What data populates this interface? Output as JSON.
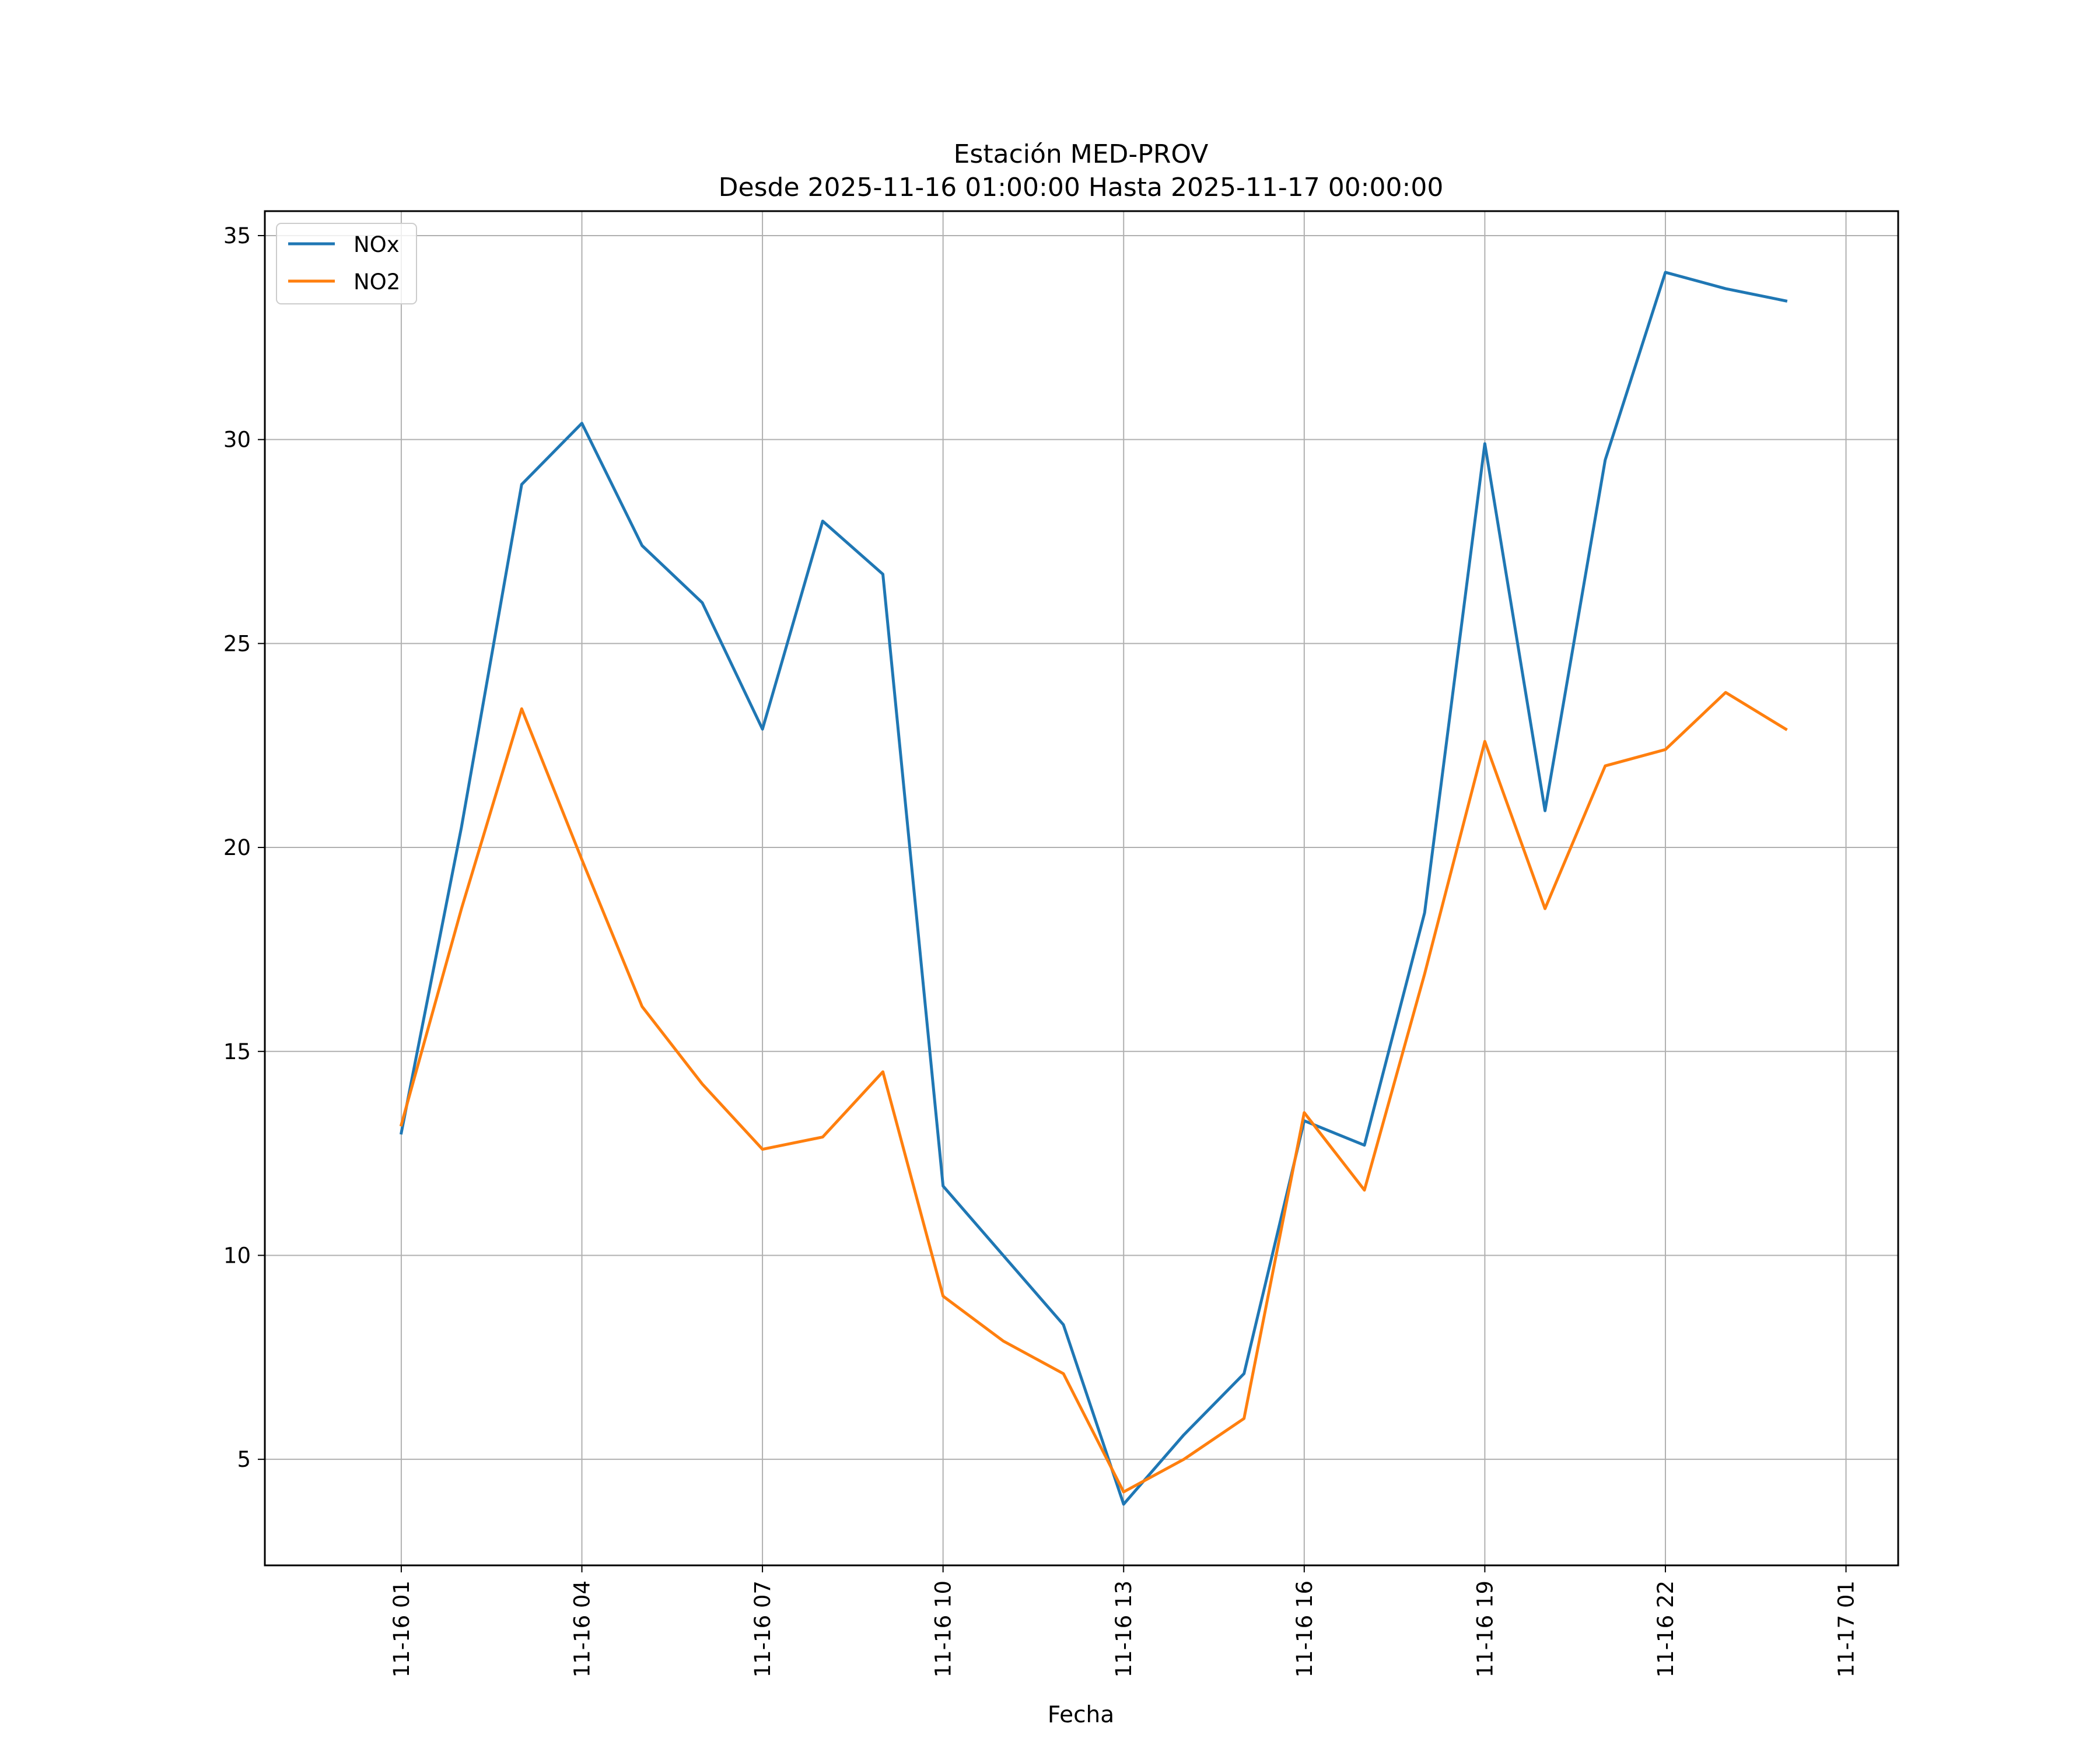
{
  "chart_data": {
    "type": "line",
    "title": "Estación MED-PROV",
    "subtitle": "Desde 2025-11-16 01:00:00 Hasta 2025-11-17 00:00:00",
    "xlabel": "Fecha",
    "ylabel": "",
    "x": [
      "2025-11-16 01:00",
      "2025-11-16 02:00",
      "2025-11-16 03:00",
      "2025-11-16 04:00",
      "2025-11-16 05:00",
      "2025-11-16 06:00",
      "2025-11-16 07:00",
      "2025-11-16 08:00",
      "2025-11-16 09:00",
      "2025-11-16 10:00",
      "2025-11-16 11:00",
      "2025-11-16 12:00",
      "2025-11-16 13:00",
      "2025-11-16 14:00",
      "2025-11-16 15:00",
      "2025-11-16 16:00",
      "2025-11-16 17:00",
      "2025-11-16 18:00",
      "2025-11-16 19:00",
      "2025-11-16 20:00",
      "2025-11-16 21:00",
      "2025-11-16 22:00",
      "2025-11-16 23:00",
      "2025-11-17 00:00"
    ],
    "series": [
      {
        "name": "NOx",
        "color": "#1f77b4",
        "values": [
          13.0,
          20.5,
          28.9,
          30.4,
          27.4,
          26.0,
          22.9,
          28.0,
          26.7,
          11.7,
          10.0,
          8.3,
          3.9,
          5.6,
          7.1,
          13.3,
          12.7,
          18.4,
          29.9,
          20.9,
          29.5,
          34.1,
          33.7,
          33.4
        ]
      },
      {
        "name": "NO2",
        "color": "#ff7f0e",
        "values": [
          13.2,
          18.5,
          23.4,
          19.7,
          16.1,
          14.2,
          12.6,
          12.9,
          14.5,
          9.0,
          7.9,
          7.1,
          4.2,
          5.0,
          6.0,
          13.5,
          11.6,
          16.9,
          22.6,
          18.5,
          22.0,
          22.4,
          23.8,
          22.9
        ]
      }
    ],
    "x_ticks": [
      "11-16 01",
      "11-16 04",
      "11-16 07",
      "11-16 10",
      "11-16 13",
      "11-16 16",
      "11-16 19",
      "11-16 22",
      "11-17 01"
    ],
    "y_ticks": [
      5,
      10,
      15,
      20,
      25,
      30,
      35
    ],
    "xlim": [
      "2025-11-15 22:44",
      "2025-11-17 01:52"
    ],
    "ylim": [
      2.4,
      35.6
    ],
    "grid": true,
    "legend_position": "upper left"
  }
}
